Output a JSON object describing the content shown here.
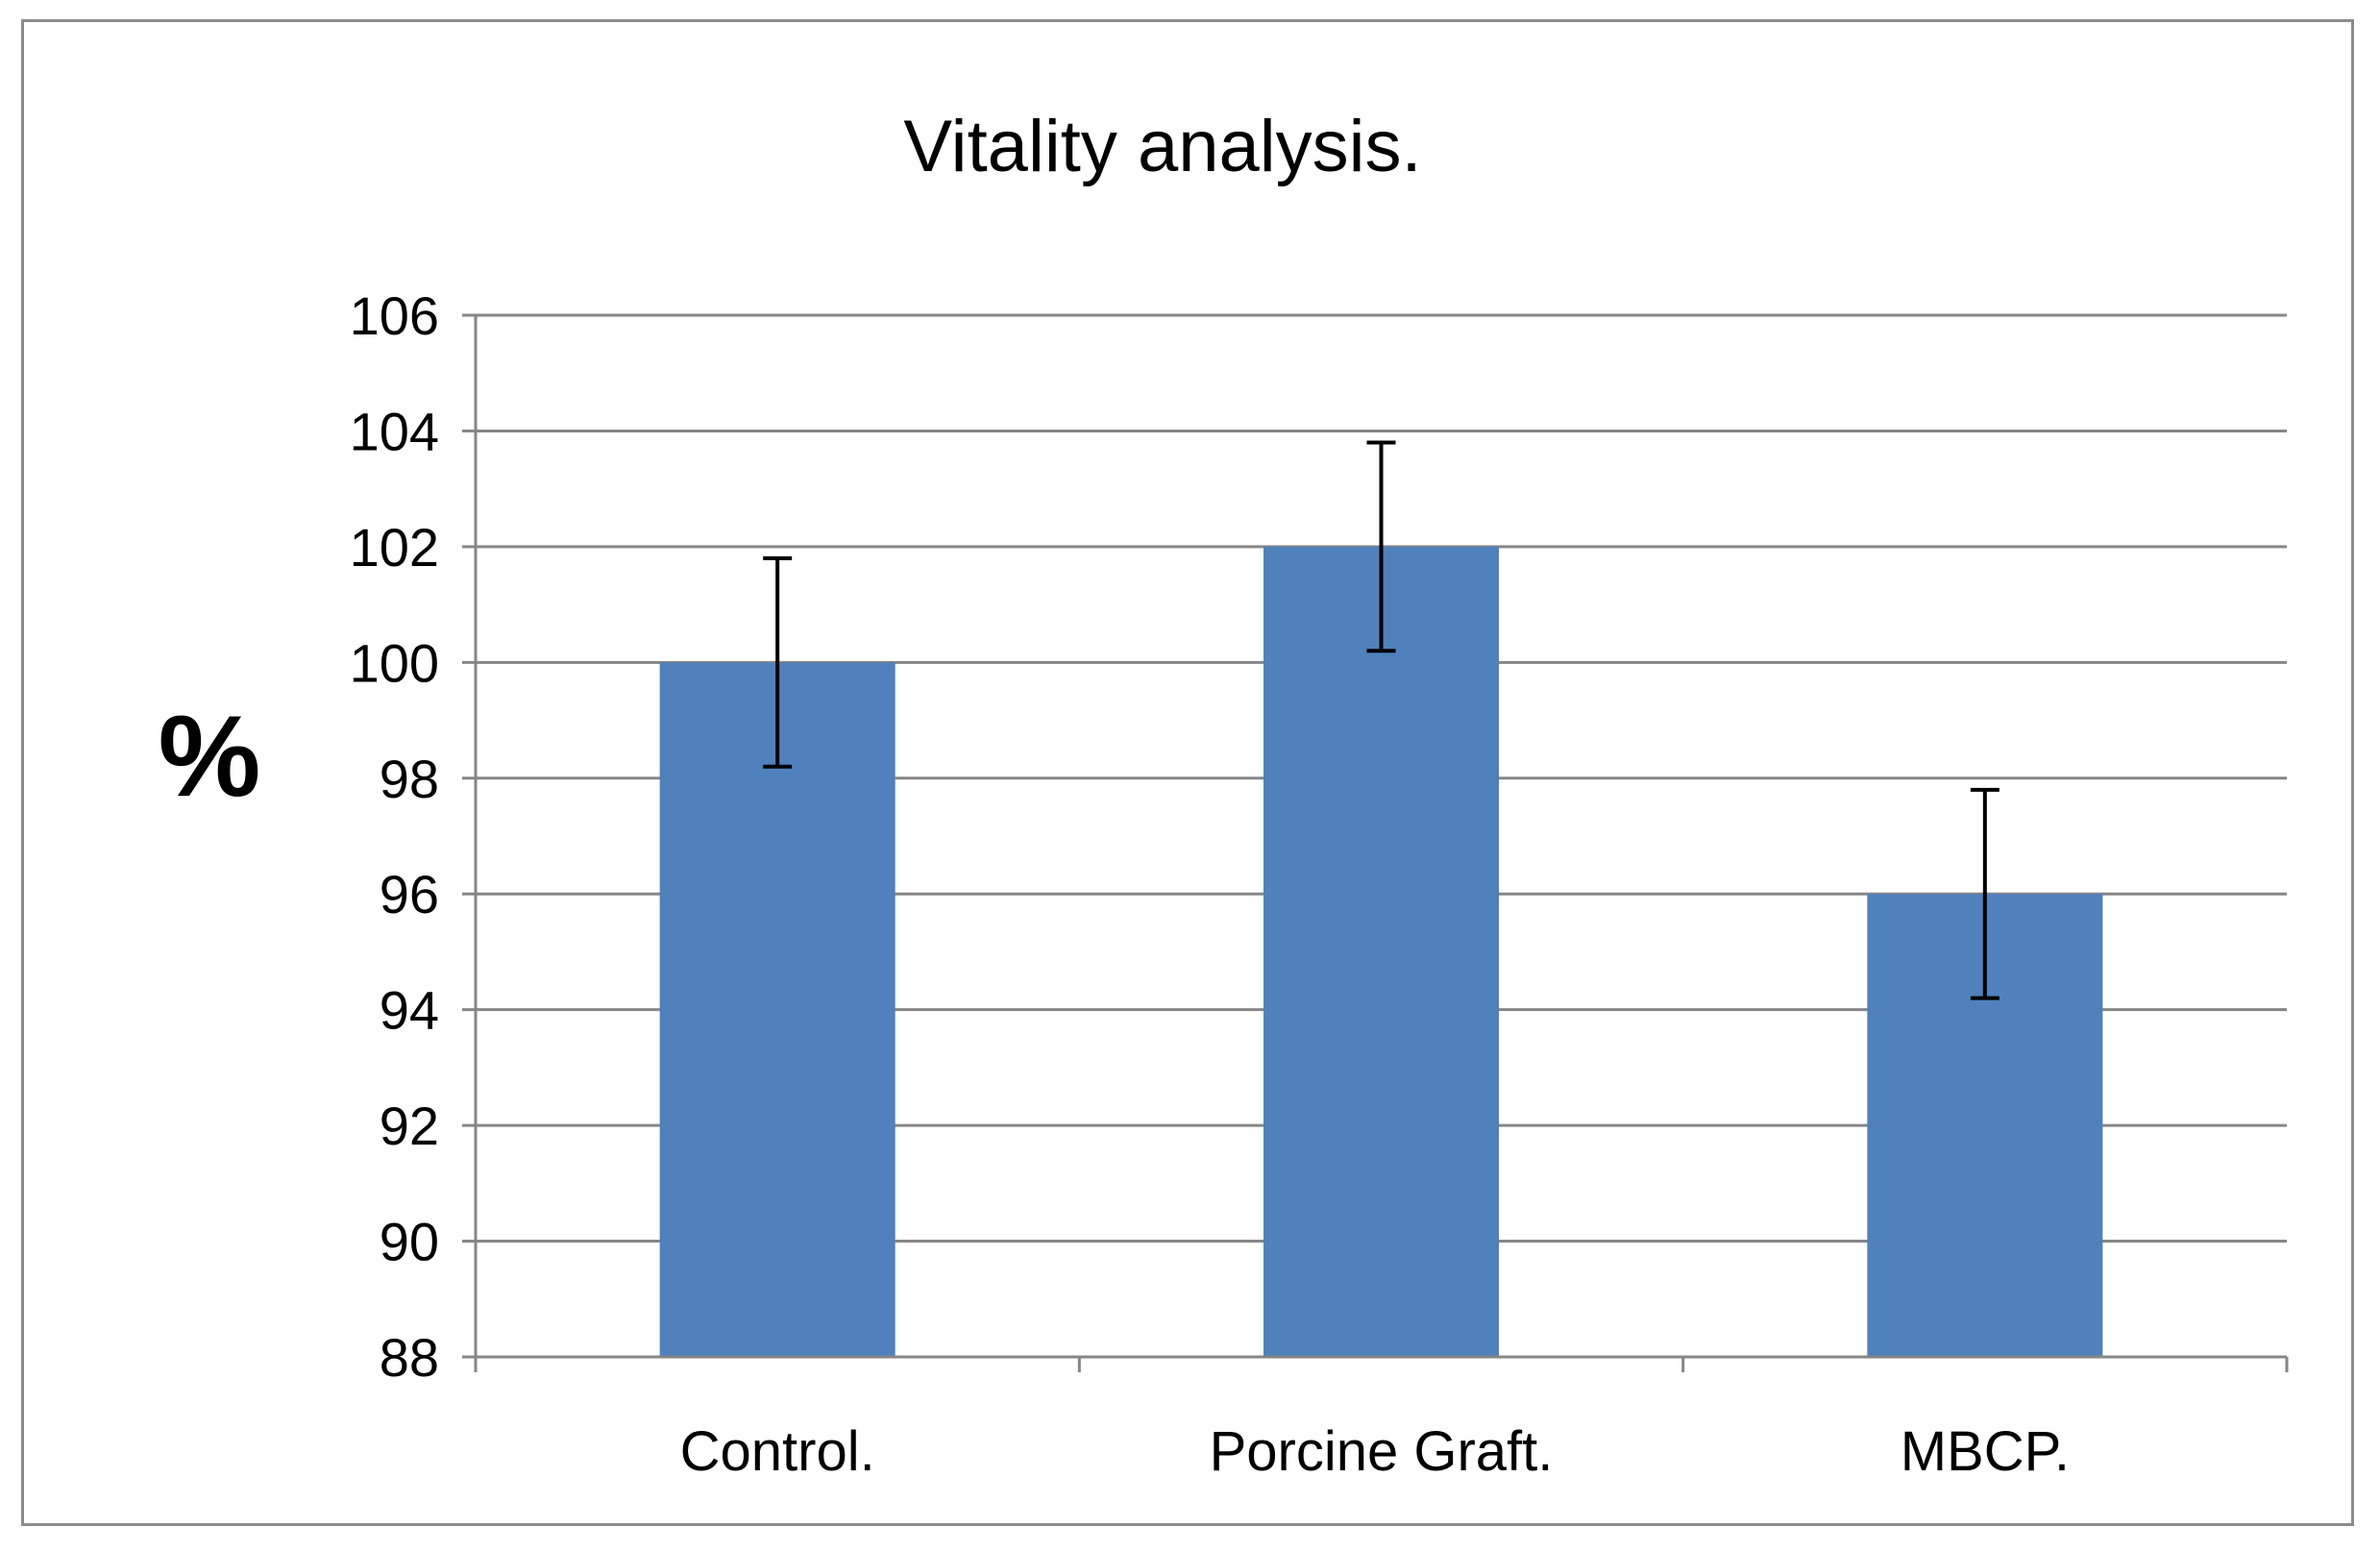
{
  "chart_data": {
    "type": "bar",
    "title": "Vitality analysis.",
    "xlabel": "",
    "ylabel": "%",
    "categories": [
      "Control.",
      "Porcine Graft.",
      "MBCP."
    ],
    "series": [
      {
        "values": [
          100,
          102,
          96
        ],
        "error": [
          1.8,
          1.8,
          1.8
        ],
        "color": "#4f81bd"
      }
    ],
    "ylim": [
      88,
      106
    ],
    "yticks": [
      88,
      90,
      92,
      94,
      96,
      98,
      100,
      102,
      104,
      106
    ],
    "grid": true,
    "legend": "none"
  }
}
